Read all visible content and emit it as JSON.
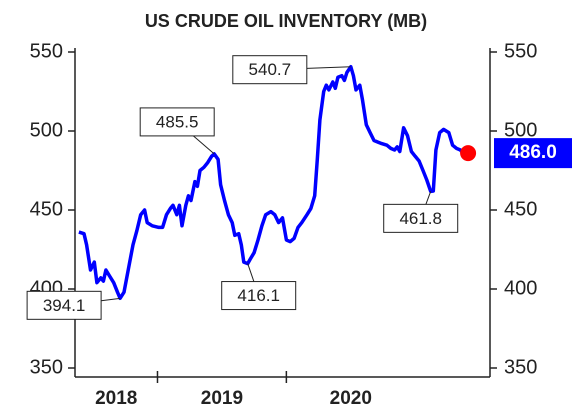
{
  "chart_data": {
    "type": "line",
    "title": "US CRUDE OIL INVENTORY (MB)",
    "x": [
      2018.39,
      2018.43,
      2018.45,
      2018.48,
      2018.51,
      2018.53,
      2018.56,
      2018.58,
      2018.6,
      2018.63,
      2018.66,
      2018.69,
      2018.71,
      2018.74,
      2018.78,
      2018.81,
      2018.84,
      2018.87,
      2018.9,
      2018.92,
      2018.96,
      2019.01,
      2019.04,
      2019.07,
      2019.1,
      2019.12,
      2019.15,
      2019.17,
      2019.19,
      2019.22,
      2019.24,
      2019.26,
      2019.29,
      2019.31,
      2019.33,
      2019.36,
      2019.39,
      2019.42,
      2019.44,
      2019.47,
      2019.49,
      2019.52,
      2019.55,
      2019.58,
      2019.6,
      2019.63,
      2019.65,
      2019.67,
      2019.7,
      2019.72,
      2019.75,
      2019.78,
      2019.81,
      2019.84,
      2019.88,
      2019.91,
      2019.94,
      2019.97,
      2020.0,
      2020.03,
      2020.06,
      2020.09,
      2020.12,
      2020.16,
      2020.19,
      2020.22,
      2020.24,
      2020.26,
      2020.29,
      2020.31,
      2020.33,
      2020.36,
      2020.38,
      2020.4,
      2020.43,
      2020.45,
      2020.47,
      2020.5,
      2020.52,
      2020.54,
      2020.57,
      2020.59,
      2020.62,
      2020.65,
      2020.68,
      2020.71,
      2020.74,
      2020.78,
      2020.81,
      2020.84,
      2020.86,
      2020.88,
      2020.91,
      2020.94,
      2020.97,
      2021.0,
      2021.03,
      2021.06,
      2021.09,
      2021.12,
      2021.14,
      2021.16,
      2021.19,
      2021.22,
      2021.26,
      2021.29,
      2021.32,
      2021.35,
      2021.38,
      2021.41
    ],
    "values": [
      436,
      435,
      428,
      412,
      417,
      404,
      407,
      405,
      412,
      408,
      404,
      398,
      394.1,
      398,
      415,
      428,
      437,
      447,
      450,
      442,
      440,
      439,
      439,
      447,
      451,
      453,
      447,
      453,
      440,
      453,
      459,
      456,
      468,
      465,
      475,
      477,
      480,
      484,
      485.5,
      482,
      466,
      456,
      447,
      442,
      434,
      435,
      428,
      417,
      416.1,
      419,
      423,
      431,
      440,
      447,
      449,
      447,
      442,
      445,
      431,
      430,
      432,
      439,
      442,
      447,
      451,
      459,
      482,
      507,
      525,
      529,
      526,
      531,
      527,
      534,
      535,
      532,
      537,
      540.7,
      535,
      526,
      529,
      520,
      504,
      499,
      494,
      493,
      492,
      491,
      489,
      488,
      490,
      487,
      502,
      497,
      487,
      484,
      481,
      475,
      469,
      461.8,
      462,
      488,
      499,
      501,
      499,
      491,
      489,
      488,
      485,
      486.0
    ],
    "color": "#0000ff",
    "marker_color": "#ff0000",
    "current_label": "486.0",
    "current_color": "#0000ff",
    "annotations": [
      {
        "x": 2018.71,
        "y": 394.1,
        "label": "394.1"
      },
      {
        "x": 2019.44,
        "y": 485.5,
        "label": "485.5"
      },
      {
        "x": 2019.7,
        "y": 416.1,
        "label": "416.1"
      },
      {
        "x": 2020.5,
        "y": 540.7,
        "label": "540.7"
      },
      {
        "x": 2021.12,
        "y": 461.8,
        "label": "461.8"
      }
    ],
    "xlim": [
      2018.36,
      2021.58
    ],
    "xticks": [
      {
        "value": 2018,
        "label": "2018"
      },
      {
        "value": 2019,
        "label": "2019"
      },
      {
        "value": 2020,
        "label": "2020"
      }
    ],
    "ylim": [
      350,
      550
    ],
    "yticks": [
      350,
      400,
      450,
      500,
      550
    ]
  }
}
